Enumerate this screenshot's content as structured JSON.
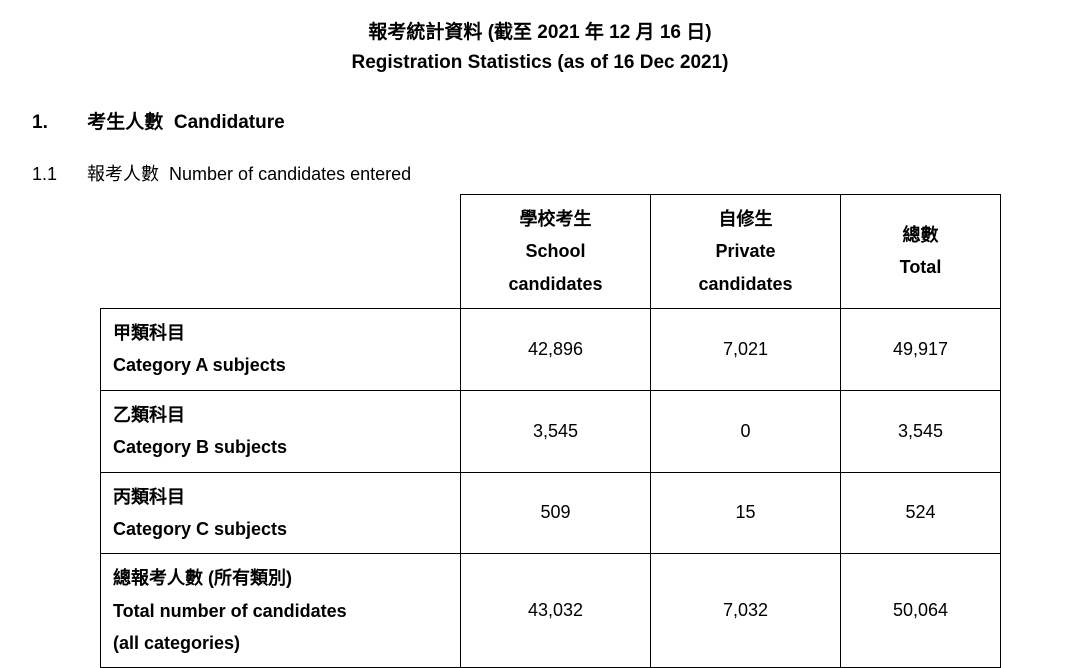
{
  "title": {
    "zh": "報考統計資料 (截至 2021 年 12 月 16 日)",
    "en": "Registration Statistics (as of 16 Dec 2021)"
  },
  "section1": {
    "num": "1.",
    "zh": "考生人數",
    "en": "Candidature"
  },
  "sub11": {
    "num": "1.1",
    "zh": "報考人數",
    "en": "Number of candidates entered"
  },
  "headers": {
    "school": {
      "zh": "學校考生",
      "en1": "School",
      "en2": "candidates"
    },
    "private": {
      "zh": "自修生",
      "en1": "Private",
      "en2": "candidates"
    },
    "total": {
      "zh": "總數",
      "en": "Total"
    }
  },
  "rows": {
    "catA": {
      "zh": "甲類科目",
      "en": "Category A subjects",
      "school": "42,896",
      "private": "7,021",
      "total": "49,917"
    },
    "catB": {
      "zh": "乙類科目",
      "en": "Category B subjects",
      "school": "3,545",
      "private": "0",
      "total": "3,545"
    },
    "catC": {
      "zh": "丙類科目",
      "en": "Category C subjects",
      "school": "509",
      "private": "15",
      "total": "524"
    },
    "totalRow": {
      "zh": "總報考人數 (所有類別)",
      "en1": "Total number of candidates",
      "en2": "(all categories)",
      "school": "43,032",
      "private": "7,032",
      "total": "50,064"
    }
  }
}
